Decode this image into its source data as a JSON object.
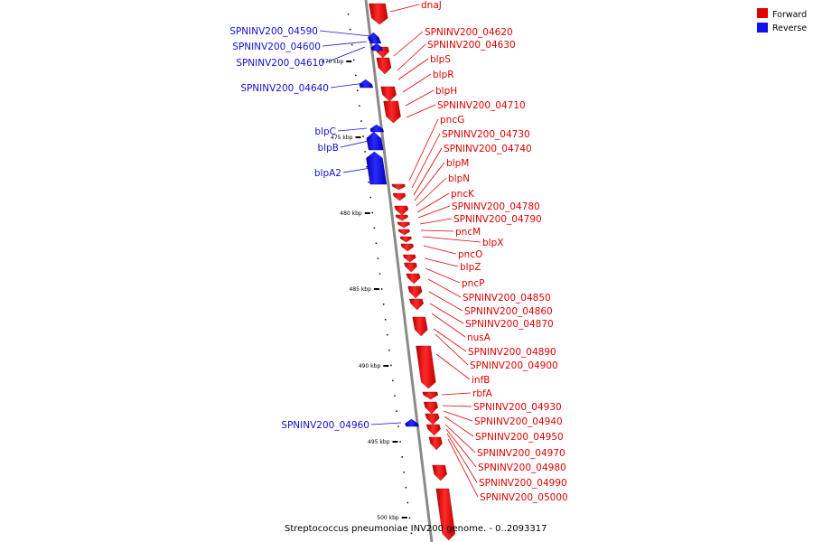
{
  "caption": "Streptococcus pneumoniae INV200 genome. - 0..2093317",
  "legend": [
    {
      "label": "Forward",
      "color": "#e00000"
    },
    {
      "label": "Reverse",
      "color": "#1010f0"
    }
  ],
  "colors": {
    "forward": "#e00000",
    "reverse": "#1010d0",
    "backbone": "#808080"
  },
  "scale_labels": [
    "470 kbp",
    "475 kbp",
    "480 kbp",
    "485 kbp",
    "490 kbp",
    "495 kbp",
    "500 kbp"
  ],
  "forward_genes": [
    "dnaJ",
    "SPNINV200_04620",
    "SPNINV200_04630",
    "blpS",
    "blpR",
    "blpH",
    "SPNINV200_04710",
    "pncG",
    "SPNINV200_04730",
    "SPNINV200_04740",
    "blpM",
    "blpN",
    "pncK",
    "SPNINV200_04780",
    "SPNINV200_04790",
    "pncM",
    "blpX",
    "pncO",
    "blpZ",
    "pncP",
    "SPNINV200_04850",
    "SPNINV200_04860",
    "SPNINV200_04870",
    "nusA",
    "SPNINV200_04890",
    "SPNINV200_04900",
    "infB",
    "rbfA",
    "SPNINV200_04930",
    "SPNINV200_04940",
    "SPNINV200_04950",
    "SPNINV200_04970",
    "SPNINV200_04980",
    "SPNINV200_04990",
    "SPNINV200_05000"
  ],
  "reverse_genes": [
    "SPNINV200_04590",
    "SPNINV200_04600",
    "SPNINV200_04610",
    "SPNINV200_04640",
    "blpC",
    "blpB",
    "blpA2",
    "SPNINV200_04960"
  ]
}
